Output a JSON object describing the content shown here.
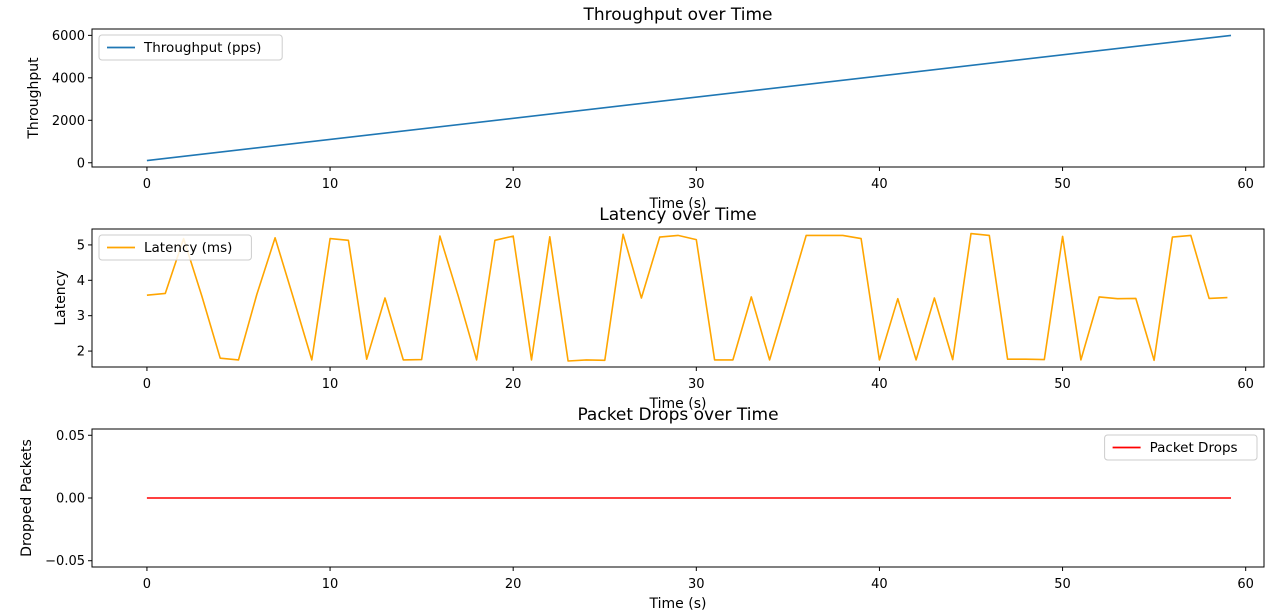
{
  "chart_data": [
    {
      "type": "line",
      "title": "Throughput over Time",
      "xlabel": "Time (s)",
      "ylabel": "Throughput",
      "xlim": [
        -3,
        61
      ],
      "ylim": [
        -200,
        6300
      ],
      "xticks": [
        0,
        10,
        20,
        30,
        40,
        50,
        60
      ],
      "yticks": [
        0,
        2000,
        4000,
        6000
      ],
      "ytick_labels": [
        "0",
        "2000",
        "4000",
        "6000"
      ],
      "legend_position": "upper-left",
      "series": [
        {
          "name": "Throughput (pps)",
          "color": "#1f77b4",
          "x": [
            0,
            59.2
          ],
          "y": [
            100,
            6000
          ]
        }
      ]
    },
    {
      "type": "line",
      "title": "Latency over Time",
      "xlabel": "Time (s)",
      "ylabel": "Latency",
      "xlim": [
        -3,
        61
      ],
      "ylim": [
        1.55,
        5.45
      ],
      "xticks": [
        0,
        10,
        20,
        30,
        40,
        50,
        60
      ],
      "yticks": [
        2,
        3,
        4,
        5
      ],
      "ytick_labels": [
        "2",
        "3",
        "4",
        "5"
      ],
      "legend_position": "upper-left",
      "series": [
        {
          "name": "Latency (ms)",
          "color": "#ffa500",
          "x": [
            0,
            1,
            2,
            3,
            4,
            5,
            6,
            7,
            8,
            9,
            10,
            11,
            12,
            13,
            14,
            15,
            16,
            17,
            18,
            19,
            20,
            21,
            22,
            23,
            24,
            25,
            26,
            27,
            28,
            29,
            30,
            31,
            32,
            33,
            34,
            35,
            36,
            37,
            38,
            39,
            40,
            41,
            42,
            43,
            44,
            45,
            46,
            47,
            48,
            49,
            50,
            51,
            52,
            53,
            54,
            55,
            56,
            57,
            58,
            59
          ],
          "y": [
            3.58,
            3.63,
            5.18,
            3.55,
            1.8,
            1.75,
            3.6,
            5.2,
            3.5,
            1.75,
            5.18,
            5.13,
            1.77,
            3.5,
            1.75,
            1.76,
            5.25,
            3.55,
            1.75,
            5.13,
            5.25,
            1.75,
            5.23,
            1.72,
            1.75,
            1.74,
            5.3,
            3.5,
            5.22,
            5.27,
            5.15,
            1.75,
            1.75,
            3.53,
            1.75,
            3.5,
            5.27,
            5.27,
            5.27,
            5.18,
            1.75,
            3.48,
            1.75,
            3.5,
            1.76,
            5.32,
            5.27,
            1.77,
            1.77,
            1.76,
            5.24,
            1.75,
            3.53,
            3.48,
            3.49,
            1.74,
            5.22,
            5.27,
            3.49,
            3.51
          ]
        }
      ]
    },
    {
      "type": "line",
      "title": "Packet Drops over Time",
      "xlabel": "Time (s)",
      "ylabel": "Dropped Packets",
      "xlim": [
        -3,
        61
      ],
      "ylim": [
        -0.055,
        0.055
      ],
      "xticks": [
        0,
        10,
        20,
        30,
        40,
        50,
        60
      ],
      "yticks": [
        -0.05,
        0,
        0.05
      ],
      "ytick_labels": [
        "−0.05",
        "0.00",
        "0.05"
      ],
      "legend_position": "upper-right",
      "series": [
        {
          "name": "Packet Drops",
          "color": "#ff0000",
          "x": [
            0,
            59.2
          ],
          "y": [
            0,
            0
          ]
        }
      ]
    }
  ]
}
